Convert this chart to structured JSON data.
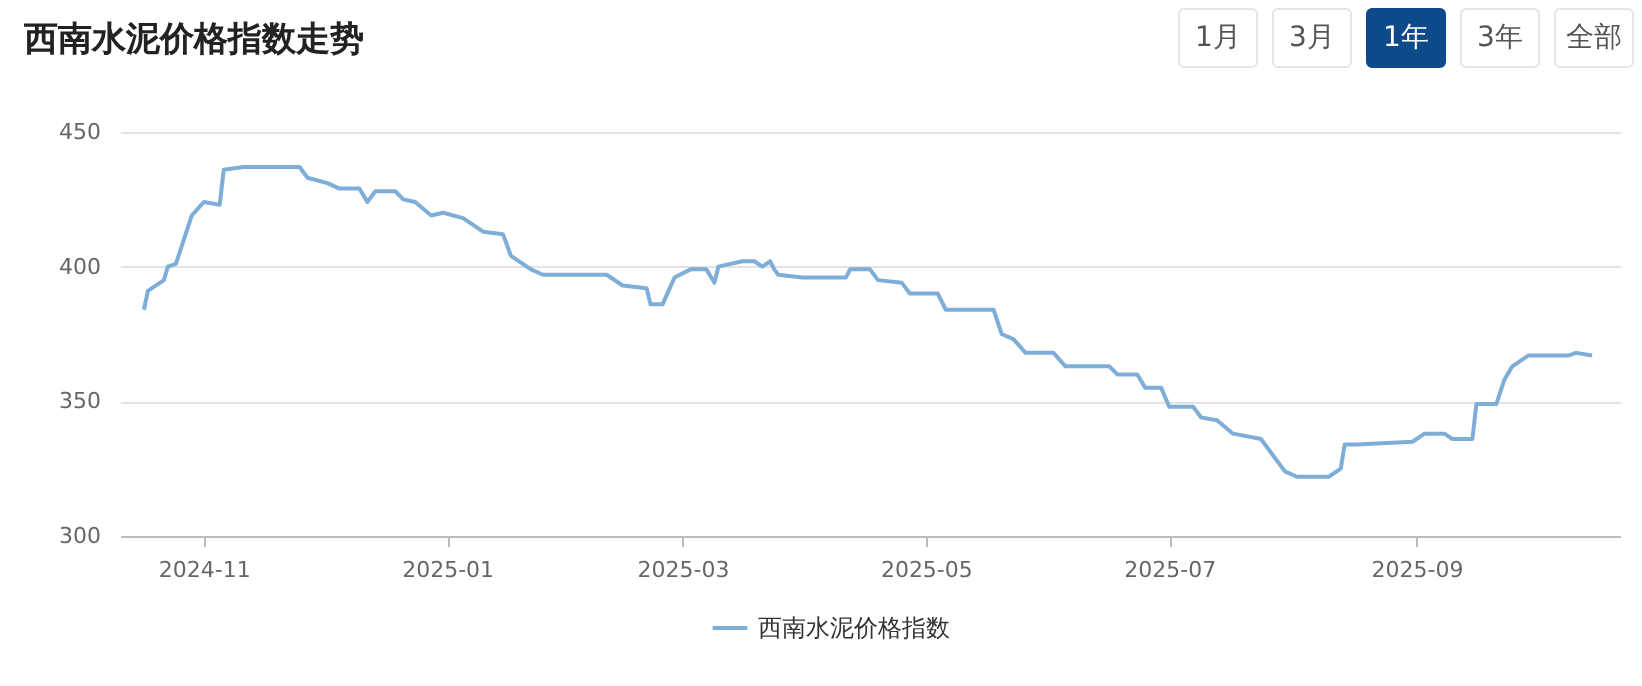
{
  "chart_data": {
    "type": "line",
    "title": "西南水泥价格指数走势",
    "annotations": [
      "1月",
      "3月",
      "1年",
      "3年",
      "全部"
    ],
    "x": [
      "2024-10-17",
      "2024-10-18",
      "2024-10-22",
      "2024-10-23",
      "2024-10-25",
      "2024-10-29",
      "2024-11-01",
      "2024-11-05",
      "2024-11-06",
      "2024-11-11",
      "2024-11-19",
      "2024-11-25",
      "2024-11-27",
      "2024-12-02",
      "2024-12-05",
      "2024-12-10",
      "2024-12-12",
      "2024-12-14",
      "2024-12-19",
      "2024-12-21",
      "2024-12-24",
      "2024-12-28",
      "2024-12-31",
      "2025-01-05",
      "2025-01-10",
      "2025-01-15",
      "2025-01-17",
      "2025-01-22",
      "2025-01-25",
      "2025-02-10",
      "2025-02-14",
      "2025-02-20",
      "2025-02-21",
      "2025-02-24",
      "2025-02-27",
      "2025-03-03",
      "2025-03-07",
      "2025-03-09",
      "2025-03-10",
      "2025-03-16",
      "2025-03-19",
      "2025-03-21",
      "2025-03-23",
      "2025-03-24",
      "2025-03-25",
      "2025-03-31",
      "2025-04-11",
      "2025-04-12",
      "2025-04-17",
      "2025-04-19",
      "2025-04-25",
      "2025-04-27",
      "2025-05-04",
      "2025-05-06",
      "2025-05-18",
      "2025-05-20",
      "2025-05-23",
      "2025-05-26",
      "2025-06-02",
      "2025-06-05",
      "2025-06-16",
      "2025-06-18",
      "2025-06-23",
      "2025-06-25",
      "2025-06-29",
      "2025-07-01",
      "2025-07-07",
      "2025-07-09",
      "2025-07-13",
      "2025-07-17",
      "2025-07-24",
      "2025-07-27",
      "2025-07-30",
      "2025-08-02",
      "2025-08-10",
      "2025-08-13",
      "2025-08-14",
      "2025-08-17",
      "2025-08-31",
      "2025-09-03",
      "2025-09-08",
      "2025-09-10",
      "2025-09-15",
      "2025-09-16",
      "2025-09-21",
      "2025-09-23",
      "2025-09-25",
      "2025-09-29",
      "2025-10-09",
      "2025-10-11",
      "2025-10-15"
    ],
    "series": [
      {
        "name": "西南水泥价格指数",
        "color": "#7eaed8",
        "values": [
          384,
          391,
          395,
          400,
          401,
          419,
          424,
          423,
          436,
          437,
          437,
          437,
          433,
          431,
          429,
          429,
          424,
          428,
          428,
          425,
          424,
          419,
          420,
          418,
          413,
          412,
          404,
          399,
          397,
          397,
          393,
          392,
          386,
          386,
          396,
          399,
          399,
          394,
          400,
          402,
          402,
          400,
          402,
          399,
          397,
          396,
          396,
          399,
          399,
          395,
          394,
          390,
          390,
          384,
          384,
          375,
          373,
          368,
          368,
          363,
          363,
          360,
          360,
          355,
          355,
          348,
          348,
          344,
          343,
          338,
          336,
          330,
          324,
          322,
          322,
          325,
          334,
          334,
          335,
          338,
          338,
          336,
          336,
          349,
          349,
          358,
          363,
          367,
          367,
          368,
          367
        ]
      }
    ],
    "xlim": [
      "2024-10-11",
      "2025-10-22"
    ],
    "xticks": [
      "2024-11",
      "2025-01",
      "2025-03",
      "2025-05",
      "2025-07",
      "2025-09"
    ],
    "ylim": [
      300,
      450
    ],
    "yticks": [
      300,
      350,
      400,
      450
    ],
    "grid": "y",
    "legend": "bottom",
    "marker": "none",
    "line_style": "solid"
  }
}
